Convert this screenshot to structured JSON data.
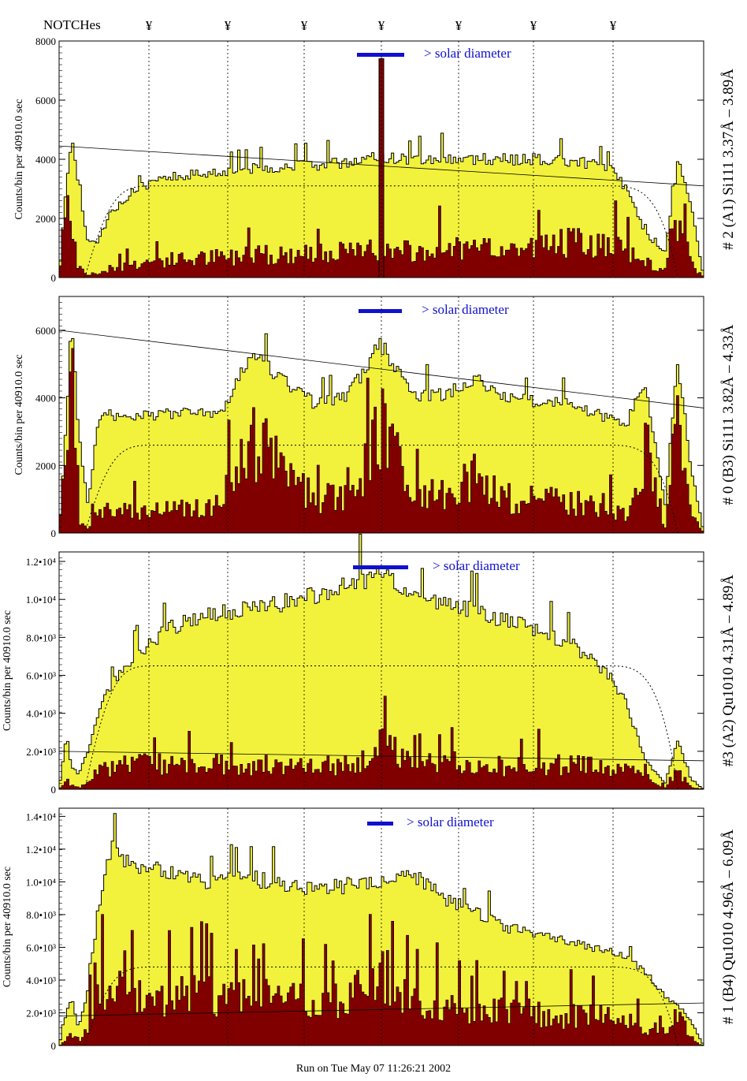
{
  "header": {
    "notches_label": "NOTCHes",
    "notch_symbol": "¥"
  },
  "footer": {
    "run_text": "Run on Tue May 07 11:26:21 2002"
  },
  "colors": {
    "yellow_fill": "#f2f23c",
    "maroon_fill": "#800000",
    "diameter_bar": "#1010d0",
    "axis": "#000000"
  },
  "chart_data": [
    {
      "type": "area",
      "panel_label": "# 2 (A1) Si111  3.37Å – 3.89Å",
      "ylabel": "Counts/bin per  40910.0 sec",
      "annotation": "> solar diameter",
      "ylim": [
        0,
        8000
      ],
      "yticks": [
        0,
        2000,
        4000,
        6000,
        8000
      ],
      "ytick_labels": [
        "0",
        "2000",
        "4000",
        "6000",
        "8000"
      ],
      "envelope_x": [
        0,
        0.01,
        0.02,
        0.03,
        0.045,
        0.06,
        0.08,
        0.12,
        0.16,
        0.2,
        0.25,
        0.3,
        0.35,
        0.4,
        0.45,
        0.5,
        0.55,
        0.6,
        0.65,
        0.7,
        0.75,
        0.8,
        0.85,
        0.88,
        0.91,
        0.94,
        0.96,
        0.98,
        1
      ],
      "envelope_y": [
        0,
        2800,
        5000,
        3000,
        1200,
        1200,
        2200,
        3000,
        3300,
        3500,
        3600,
        3700,
        3750,
        3800,
        3900,
        4100,
        4000,
        4050,
        4000,
        4000,
        4000,
        3900,
        3800,
        3000,
        1500,
        800,
        4000,
        2500,
        0
      ],
      "core_y": [
        0,
        3200,
        2000,
        300,
        100,
        150,
        300,
        500,
        600,
        650,
        700,
        750,
        800,
        800,
        850,
        900,
        900,
        950,
        950,
        1000,
        1100,
        1200,
        1100,
        900,
        500,
        200,
        2000,
        500,
        0
      ],
      "spikes": [
        {
          "x": 0.5,
          "y": 7400
        }
      ],
      "trend": [
        4450,
        3100
      ],
      "dotted_plateau": 3100
    },
    {
      "type": "area",
      "panel_label": "# 0 (B3) Si111  3.82Å – 4.33Å",
      "ylabel": "Counts/bin per  40910.0 sec",
      "annotation": "> solar diameter",
      "ylim": [
        0,
        7000
      ],
      "yticks": [
        0,
        2000,
        4000,
        6000
      ],
      "ytick_labels": [
        "0",
        "2000",
        "4000",
        "6000"
      ],
      "envelope_x": [
        0,
        0.01,
        0.02,
        0.03,
        0.045,
        0.06,
        0.08,
        0.12,
        0.16,
        0.2,
        0.25,
        0.3,
        0.35,
        0.4,
        0.45,
        0.5,
        0.55,
        0.6,
        0.65,
        0.7,
        0.75,
        0.8,
        0.85,
        0.88,
        0.91,
        0.94,
        0.96,
        0.98,
        1
      ],
      "envelope_y": [
        0,
        3000,
        6400,
        3000,
        800,
        3300,
        3500,
        3500,
        3500,
        3550,
        3500,
        5400,
        4500,
        3800,
        4100,
        5600,
        4100,
        4100,
        4500,
        4000,
        3900,
        3800,
        3400,
        3200,
        4500,
        800,
        5100,
        2000,
        0
      ],
      "core_y": [
        0,
        2800,
        4500,
        500,
        100,
        700,
        700,
        650,
        700,
        750,
        800,
        2800,
        1800,
        1000,
        1100,
        3100,
        1200,
        1100,
        1700,
        1000,
        950,
        900,
        800,
        500,
        2500,
        200,
        3300,
        500,
        0
      ],
      "spikes": [],
      "trend": [
        6000,
        3700
      ],
      "dotted_plateau": 2600
    },
    {
      "type": "area",
      "panel_label": "#3 (A2) Qu1010  4.31Å – 4.89Å",
      "ylabel": "Counts/bin per  40910.0 sec",
      "annotation": "> solar diameter",
      "ylim": [
        0,
        12500
      ],
      "yticks": [
        0,
        2000,
        4000,
        6000,
        8000,
        10000,
        12000
      ],
      "ytick_labels": [
        "0",
        "2.0•10³",
        "4.0•10³",
        "6.0•10³",
        "8.0•10³",
        "1.0•10⁴",
        "1.2•10⁴"
      ],
      "envelope_x": [
        0,
        0.01,
        0.02,
        0.03,
        0.045,
        0.06,
        0.08,
        0.12,
        0.16,
        0.2,
        0.25,
        0.3,
        0.35,
        0.4,
        0.45,
        0.5,
        0.55,
        0.6,
        0.65,
        0.7,
        0.75,
        0.8,
        0.85,
        0.88,
        0.91,
        0.94,
        0.96,
        0.98,
        1
      ],
      "envelope_y": [
        0,
        2500,
        1200,
        800,
        2000,
        4000,
        5500,
        7000,
        8200,
        9000,
        9300,
        9500,
        9800,
        10300,
        10800,
        11300,
        10300,
        9800,
        9300,
        8900,
        8300,
        7500,
        6200,
        4500,
        1500,
        300,
        2600,
        500,
        0
      ],
      "core_y": [
        0,
        500,
        200,
        100,
        300,
        1000,
        1200,
        1300,
        1300,
        1200,
        1300,
        1300,
        1200,
        1400,
        1200,
        2400,
        1300,
        1400,
        1300,
        1200,
        1300,
        1300,
        1200,
        1100,
        600,
        100,
        1000,
        100,
        0
      ],
      "spikes": [],
      "trend": [
        2000,
        1500
      ],
      "dotted_plateau": 6500
    },
    {
      "type": "area",
      "panel_label": "# 1 (B4) Qu1010 4.96Å – 6.09Å",
      "ylabel": "Counts/bin per  40910.0 sec",
      "annotation": "> solar diameter",
      "ylim": [
        0,
        14500
      ],
      "yticks": [
        0,
        2000,
        4000,
        6000,
        8000,
        10000,
        12000,
        14000
      ],
      "ytick_labels": [
        "0",
        "2.0•10³",
        "4.0•10³",
        "6.0•10³",
        "8.0•10³",
        "1.0•10⁴",
        "1.2•10⁴",
        "1.4•10⁴"
      ],
      "envelope_x": [
        0,
        0.01,
        0.02,
        0.03,
        0.045,
        0.06,
        0.08,
        0.12,
        0.16,
        0.2,
        0.25,
        0.3,
        0.35,
        0.4,
        0.45,
        0.5,
        0.55,
        0.6,
        0.65,
        0.7,
        0.75,
        0.8,
        0.85,
        0.88,
        0.91,
        0.94,
        0.96,
        0.98,
        1
      ],
      "envelope_y": [
        0,
        1800,
        3000,
        1000,
        3500,
        8000,
        12000,
        11000,
        10800,
        10200,
        10000,
        10200,
        9800,
        9500,
        9800,
        10000,
        10500,
        9000,
        8000,
        7200,
        6800,
        6200,
        5800,
        5300,
        4500,
        3000,
        2500,
        1500,
        0
      ],
      "core_y": [
        0,
        300,
        900,
        300,
        1200,
        4500,
        3500,
        3000,
        2800,
        3200,
        3000,
        2900,
        2700,
        2600,
        2800,
        4500,
        3000,
        2300,
        2000,
        2200,
        1800,
        1800,
        1700,
        1500,
        1200,
        800,
        2000,
        300,
        0
      ],
      "spikes": [],
      "trend": [
        1800,
        2600
      ],
      "dotted_plateau": 4800
    }
  ]
}
